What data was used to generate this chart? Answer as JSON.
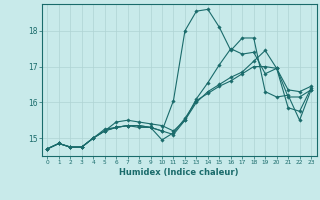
{
  "xlabel": "Humidex (Indice chaleur)",
  "background_color": "#c8eaea",
  "grid_color": "#afd4d4",
  "line_color": "#1a6b6b",
  "xlim": [
    -0.5,
    23.5
  ],
  "ylim": [
    14.5,
    18.75
  ],
  "yticks": [
    15,
    16,
    17,
    18
  ],
  "xticks": [
    0,
    1,
    2,
    3,
    4,
    5,
    6,
    7,
    8,
    9,
    10,
    11,
    12,
    13,
    14,
    15,
    16,
    17,
    18,
    19,
    20,
    21,
    22,
    23
  ],
  "series": [
    {
      "x": [
        0,
        1,
        2,
        3,
        4,
        5,
        6,
        7,
        8,
        9,
        10,
        11,
        12,
        13,
        14,
        15,
        16,
        17,
        18,
        19,
        20,
        21,
        22,
        23
      ],
      "y": [
        14.7,
        14.85,
        14.75,
        14.75,
        15.0,
        15.2,
        15.45,
        15.5,
        15.45,
        15.4,
        15.35,
        15.2,
        15.5,
        16.0,
        16.3,
        16.5,
        16.7,
        16.85,
        17.15,
        17.45,
        16.95,
        16.35,
        16.3,
        16.45
      ]
    },
    {
      "x": [
        0,
        1,
        2,
        3,
        4,
        5,
        6,
        7,
        8,
        9,
        10,
        11,
        12,
        13,
        14,
        15,
        16,
        17,
        18,
        19,
        20,
        21,
        22,
        23
      ],
      "y": [
        14.7,
        14.85,
        14.75,
        14.75,
        15.0,
        15.2,
        15.3,
        15.35,
        15.3,
        15.3,
        14.95,
        15.15,
        15.55,
        16.05,
        16.25,
        16.45,
        16.6,
        16.8,
        17.0,
        17.0,
        16.95,
        16.15,
        16.15,
        16.35
      ]
    },
    {
      "x": [
        0,
        1,
        2,
        3,
        4,
        5,
        6,
        7,
        8,
        9,
        10,
        11,
        12,
        13,
        14,
        15,
        16,
        17,
        18,
        19,
        20,
        21,
        22,
        23
      ],
      "y": [
        14.7,
        14.85,
        14.75,
        14.75,
        15.0,
        15.25,
        15.3,
        15.35,
        15.35,
        15.3,
        15.2,
        15.1,
        15.5,
        16.1,
        16.55,
        17.05,
        17.5,
        17.35,
        17.4,
        16.8,
        16.95,
        15.85,
        15.75,
        16.4
      ]
    },
    {
      "x": [
        0,
        1,
        2,
        3,
        4,
        5,
        6,
        7,
        8,
        9,
        10,
        11,
        12,
        13,
        14,
        15,
        16,
        17,
        18,
        19,
        20,
        21,
        22,
        23
      ],
      "y": [
        14.7,
        14.85,
        14.75,
        14.75,
        15.0,
        15.2,
        15.3,
        15.35,
        15.35,
        15.3,
        15.2,
        16.05,
        18.0,
        18.55,
        18.6,
        18.1,
        17.45,
        17.8,
        17.8,
        16.3,
        16.15,
        16.2,
        15.5,
        16.35
      ]
    }
  ]
}
